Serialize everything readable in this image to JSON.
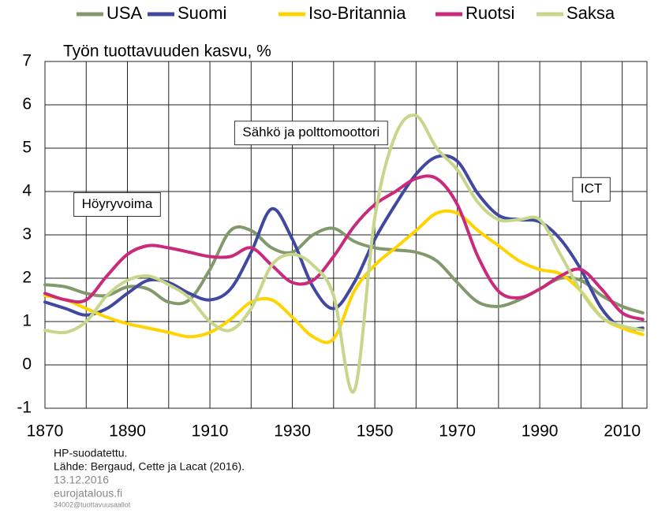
{
  "chart_data": {
    "type": "line",
    "y_axis_label": "Työn tuottavuuden kasvu, %",
    "x": [
      1870,
      1875,
      1880,
      1885,
      1890,
      1895,
      1900,
      1905,
      1910,
      1915,
      1920,
      1925,
      1930,
      1935,
      1940,
      1945,
      1950,
      1955,
      1960,
      1965,
      1970,
      1975,
      1980,
      1985,
      1990,
      1995,
      2000,
      2005,
      2010,
      2015
    ],
    "series": [
      {
        "name": "USA",
        "color": "#82996c",
        "values": [
          1.85,
          1.8,
          1.65,
          1.6,
          1.8,
          1.75,
          1.45,
          1.5,
          2.2,
          3.1,
          3.1,
          2.7,
          2.6,
          3.0,
          3.15,
          2.85,
          2.7,
          2.65,
          2.6,
          2.4,
          1.9,
          1.45,
          1.35,
          1.5,
          1.75,
          2.0,
          1.95,
          1.6,
          1.35,
          1.2
        ]
      },
      {
        "name": "Suomi",
        "color": "#4048a0",
        "values": [
          1.45,
          1.3,
          1.15,
          1.3,
          1.65,
          1.95,
          1.9,
          1.65,
          1.5,
          1.75,
          2.6,
          3.6,
          2.9,
          1.8,
          1.3,
          1.9,
          2.9,
          3.7,
          4.4,
          4.8,
          4.7,
          3.95,
          3.45,
          3.35,
          3.3,
          2.9,
          2.2,
          1.3,
          0.85,
          0.85
        ]
      },
      {
        "name": "Iso-Britannia",
        "color": "#ffd400",
        "values": [
          1.6,
          1.5,
          1.3,
          1.1,
          0.95,
          0.85,
          0.75,
          0.65,
          0.75,
          1.05,
          1.45,
          1.5,
          1.1,
          0.65,
          0.6,
          1.7,
          2.3,
          2.7,
          3.1,
          3.5,
          3.5,
          3.1,
          2.75,
          2.4,
          2.2,
          2.1,
          1.7,
          1.1,
          0.85,
          0.7
        ]
      },
      {
        "name": "Ruotsi",
        "color": "#c92a7c",
        "values": [
          1.65,
          1.5,
          1.5,
          2.05,
          2.55,
          2.75,
          2.7,
          2.6,
          2.5,
          2.5,
          2.7,
          2.3,
          1.9,
          1.95,
          2.5,
          3.2,
          3.7,
          4.0,
          4.3,
          4.3,
          3.7,
          2.5,
          1.7,
          1.55,
          1.75,
          2.05,
          2.2,
          1.75,
          1.2,
          1.05
        ]
      },
      {
        "name": "Saksa",
        "color": "#c6d78c",
        "values": [
          0.8,
          0.75,
          1.0,
          1.6,
          1.95,
          2.05,
          1.85,
          1.55,
          1.0,
          0.8,
          1.3,
          2.3,
          2.55,
          2.3,
          1.6,
          -0.6,
          3.4,
          5.3,
          5.75,
          5.0,
          4.5,
          3.75,
          3.35,
          3.35,
          3.35,
          2.55,
          1.7,
          1.1,
          0.9,
          0.8
        ]
      }
    ],
    "xlim": [
      1870,
      2016
    ],
    "xticks": [
      1870,
      1890,
      1910,
      1930,
      1950,
      1970,
      1990,
      2010
    ],
    "xgrid_minor": [
      1880,
      1900,
      1920,
      1940,
      1960,
      1980,
      2000
    ],
    "ylim": [
      -1,
      7
    ],
    "yticks": [
      -1,
      0,
      1,
      2,
      3,
      4,
      5,
      6,
      7
    ],
    "grid": true,
    "legend": "top",
    "annotations": [
      {
        "text": "Höyryvoima",
        "x": 1877,
        "y": 3.7
      },
      {
        "text": "Sähkö ja polttomoottori",
        "x": 1916,
        "y": 5.35
      },
      {
        "text": "ICT",
        "x": 1998,
        "y": 4.05
      }
    ],
    "footnotes": [
      "HP-suodatettu.",
      "Lähde: Bergaud, Cette ja Lacat (2016).",
      "13.12.2016",
      "eurojatalous.fi",
      "34002@tuottavuusaallot"
    ]
  }
}
